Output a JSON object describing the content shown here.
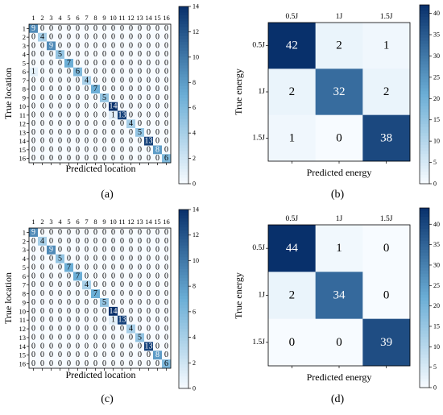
{
  "colors": {
    "low": "#f7fbff",
    "mid": "#6baed6",
    "high": "#08306b"
  },
  "chart_data": [
    {
      "panel": "(a)",
      "type": "heatmap",
      "xlabel": "Predicted location",
      "ylabel": "True location",
      "categories": [
        "1",
        "2",
        "3",
        "4",
        "5",
        "6",
        "7",
        "8",
        "9",
        "10",
        "11",
        "12",
        "13",
        "14",
        "15",
        "16"
      ],
      "colorbar_ticks": [
        0,
        2,
        4,
        6,
        8,
        10,
        12,
        14
      ],
      "vmax": 14,
      "matrix": [
        [
          9,
          0,
          0,
          0,
          0,
          0,
          0,
          0,
          0,
          0,
          0,
          0,
          0,
          0,
          0,
          0
        ],
        [
          0,
          4,
          0,
          0,
          0,
          0,
          0,
          0,
          0,
          0,
          0,
          0,
          0,
          0,
          0,
          0
        ],
        [
          0,
          0,
          9,
          0,
          0,
          0,
          0,
          0,
          0,
          0,
          0,
          0,
          0,
          0,
          0,
          0
        ],
        [
          0,
          0,
          0,
          5,
          0,
          0,
          0,
          0,
          0,
          0,
          0,
          0,
          0,
          0,
          0,
          0
        ],
        [
          0,
          0,
          0,
          0,
          7,
          0,
          0,
          0,
          0,
          0,
          0,
          0,
          0,
          0,
          0,
          0
        ],
        [
          1,
          0,
          0,
          0,
          0,
          6,
          0,
          0,
          0,
          0,
          0,
          0,
          0,
          0,
          0,
          0
        ],
        [
          0,
          0,
          0,
          0,
          0,
          0,
          4,
          0,
          0,
          0,
          0,
          0,
          0,
          0,
          0,
          0
        ],
        [
          0,
          0,
          0,
          0,
          0,
          0,
          0,
          7,
          0,
          0,
          0,
          0,
          0,
          0,
          0,
          0
        ],
        [
          0,
          0,
          0,
          0,
          0,
          0,
          0,
          0,
          5,
          0,
          0,
          0,
          0,
          0,
          0,
          0
        ],
        [
          0,
          0,
          0,
          0,
          0,
          0,
          0,
          0,
          0,
          14,
          0,
          0,
          0,
          0,
          0,
          0
        ],
        [
          0,
          0,
          0,
          0,
          0,
          0,
          0,
          0,
          0,
          1,
          13,
          0,
          0,
          0,
          0,
          0
        ],
        [
          0,
          0,
          0,
          0,
          0,
          0,
          0,
          0,
          0,
          0,
          0,
          4,
          0,
          0,
          0,
          0
        ],
        [
          0,
          0,
          0,
          0,
          0,
          0,
          0,
          0,
          0,
          0,
          0,
          0,
          5,
          0,
          0,
          0
        ],
        [
          0,
          0,
          0,
          0,
          0,
          0,
          0,
          0,
          0,
          0,
          0,
          0,
          0,
          13,
          0,
          0
        ],
        [
          0,
          0,
          0,
          0,
          0,
          0,
          0,
          0,
          0,
          0,
          0,
          0,
          0,
          0,
          8,
          0
        ],
        [
          0,
          0,
          0,
          0,
          0,
          0,
          0,
          0,
          0,
          0,
          0,
          0,
          0,
          0,
          0,
          6
        ]
      ]
    },
    {
      "panel": "(b)",
      "type": "heatmap",
      "xlabel": "Predicted energy",
      "ylabel": "True energy",
      "categories": [
        "0.5J",
        "1J",
        "1.5J"
      ],
      "colorbar_ticks": [
        0,
        5,
        10,
        15,
        20,
        25,
        30,
        35,
        40
      ],
      "vmax": 42,
      "matrix": [
        [
          42,
          2,
          1
        ],
        [
          2,
          32,
          2
        ],
        [
          1,
          0,
          38
        ]
      ]
    },
    {
      "panel": "(c)",
      "type": "heatmap",
      "xlabel": "Predicted location",
      "ylabel": "True location",
      "categories": [
        "1",
        "2",
        "3",
        "4",
        "5",
        "6",
        "7",
        "8",
        "9",
        "10",
        "11",
        "12",
        "13",
        "14",
        "15",
        "16"
      ],
      "colorbar_ticks": [
        0,
        2,
        4,
        6,
        8,
        10,
        12,
        14
      ],
      "vmax": 14,
      "matrix": [
        [
          9,
          0,
          0,
          0,
          0,
          0,
          0,
          0,
          0,
          0,
          0,
          0,
          0,
          0,
          0,
          0
        ],
        [
          0,
          4,
          0,
          0,
          0,
          0,
          0,
          0,
          0,
          0,
          0,
          0,
          0,
          0,
          0,
          0
        ],
        [
          0,
          0,
          9,
          0,
          0,
          0,
          0,
          0,
          0,
          0,
          0,
          0,
          0,
          0,
          0,
          0
        ],
        [
          0,
          0,
          0,
          5,
          0,
          0,
          0,
          0,
          0,
          0,
          0,
          0,
          0,
          0,
          0,
          0
        ],
        [
          0,
          0,
          0,
          0,
          7,
          0,
          0,
          0,
          0,
          0,
          0,
          0,
          0,
          0,
          0,
          0
        ],
        [
          0,
          0,
          0,
          0,
          0,
          7,
          0,
          0,
          0,
          0,
          0,
          0,
          0,
          0,
          0,
          0
        ],
        [
          0,
          0,
          0,
          0,
          0,
          0,
          4,
          0,
          0,
          0,
          0,
          0,
          0,
          0,
          0,
          0
        ],
        [
          0,
          0,
          0,
          0,
          0,
          0,
          0,
          7,
          0,
          0,
          0,
          0,
          0,
          0,
          0,
          0
        ],
        [
          0,
          0,
          0,
          0,
          0,
          0,
          0,
          0,
          5,
          0,
          0,
          0,
          0,
          0,
          0,
          0
        ],
        [
          0,
          0,
          0,
          0,
          0,
          0,
          0,
          0,
          0,
          14,
          0,
          0,
          0,
          0,
          0,
          0
        ],
        [
          0,
          0,
          0,
          0,
          0,
          0,
          0,
          0,
          0,
          1,
          13,
          0,
          0,
          0,
          0,
          0
        ],
        [
          0,
          0,
          0,
          0,
          0,
          0,
          0,
          0,
          0,
          0,
          0,
          4,
          0,
          0,
          0,
          0
        ],
        [
          0,
          0,
          0,
          0,
          0,
          0,
          0,
          0,
          0,
          0,
          0,
          0,
          5,
          0,
          0,
          0
        ],
        [
          0,
          0,
          0,
          0,
          0,
          0,
          0,
          0,
          0,
          0,
          0,
          0,
          0,
          13,
          0,
          0
        ],
        [
          0,
          0,
          0,
          0,
          0,
          0,
          0,
          0,
          0,
          0,
          0,
          0,
          0,
          0,
          8,
          0
        ],
        [
          0,
          0,
          0,
          0,
          0,
          0,
          0,
          0,
          0,
          0,
          0,
          0,
          0,
          0,
          0,
          6
        ]
      ]
    },
    {
      "panel": "(d)",
      "type": "heatmap",
      "xlabel": "Predicted energy",
      "ylabel": "True energy",
      "categories": [
        "0.5J",
        "1J",
        "1.5J"
      ],
      "colorbar_ticks": [
        0,
        5,
        10,
        15,
        20,
        25,
        30,
        35,
        40
      ],
      "vmax": 44,
      "matrix": [
        [
          44,
          1,
          0
        ],
        [
          2,
          34,
          0
        ],
        [
          0,
          0,
          39
        ]
      ]
    }
  ]
}
